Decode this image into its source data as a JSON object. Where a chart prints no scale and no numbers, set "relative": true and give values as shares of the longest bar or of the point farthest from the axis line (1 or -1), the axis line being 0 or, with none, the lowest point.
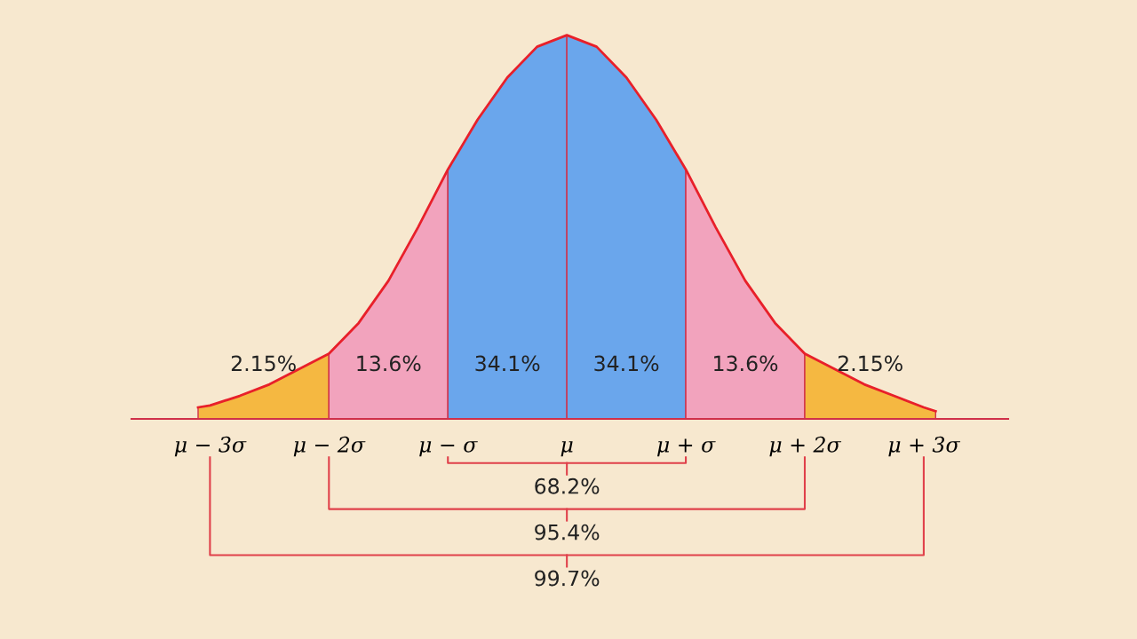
{
  "chart_data": {
    "type": "area",
    "relative": true,
    "xlim": [
      -3.66,
      3.71
    ],
    "xticks": [
      {
        "value": -3,
        "label": "μ − 3σ"
      },
      {
        "value": -2,
        "label": "μ − 2σ"
      },
      {
        "value": -1,
        "label": "μ − σ"
      },
      {
        "value": 0,
        "label": "μ"
      },
      {
        "value": 1,
        "label": "μ + σ"
      },
      {
        "value": 2,
        "label": "μ + 2σ"
      },
      {
        "value": 3,
        "label": "μ + 3σ"
      }
    ],
    "tick_labels": "x",
    "grid": false,
    "legend": false,
    "series": [
      {
        "color": "#f5b841",
        "x": [
          -3.1,
          -3,
          -2.75,
          -2.5,
          -2.25,
          -2
        ],
        "values": [
          0.03,
          0.035,
          0.06,
          0.09,
          0.13,
          0.17
        ]
      },
      {
        "color": "#f2a3bd",
        "x": [
          -2,
          -1.75,
          -1.5,
          -1.25,
          -1
        ],
        "values": [
          0.17,
          0.25,
          0.36,
          0.5,
          0.65
        ]
      },
      {
        "color": "#6aa6ec",
        "x": [
          -1,
          -0.75,
          -0.5,
          -0.25,
          0
        ],
        "values": [
          0.65,
          0.78,
          0.89,
          0.97,
          1
        ]
      },
      {
        "color": "#6aa6ec",
        "x": [
          0,
          0.25,
          0.5,
          0.75,
          1
        ],
        "values": [
          1,
          0.97,
          0.89,
          0.78,
          0.65
        ]
      },
      {
        "color": "#f2a3bd",
        "x": [
          1,
          1.25,
          1.5,
          1.75,
          2
        ],
        "values": [
          0.65,
          0.5,
          0.36,
          0.25,
          0.17
        ]
      },
      {
        "color": "#f5b841",
        "x": [
          2,
          2.25,
          2.5,
          2.75,
          3,
          3.1
        ],
        "values": [
          0.17,
          0.13,
          0.09,
          0.06,
          0.03,
          0.02
        ]
      },
      {
        "type": "line",
        "color": "#e8202a",
        "x": [
          -3.1,
          -3,
          -2.75,
          -2.5,
          -2.25,
          -2,
          -1.75,
          -1.5,
          -1.25,
          -1,
          -0.75,
          -0.5,
          -0.25,
          0,
          0.25,
          0.5,
          0.75,
          1,
          1.25,
          1.5,
          1.75,
          2,
          2.25,
          2.5,
          2.75,
          3,
          3.1
        ],
        "values": [
          0.03,
          0.035,
          0.06,
          0.09,
          0.13,
          0.17,
          0.25,
          0.36,
          0.5,
          0.65,
          0.78,
          0.89,
          0.97,
          1,
          0.97,
          0.89,
          0.78,
          0.65,
          0.5,
          0.36,
          0.25,
          0.17,
          0.13,
          0.09,
          0.06,
          0.03,
          0.02
        ]
      }
    ],
    "annotations": [
      "2.15%",
      "13.6%",
      "34.1%",
      "34.1%",
      "13.6%",
      "2.15%",
      "68.2%",
      "95.4%",
      "99.7%"
    ]
  }
}
